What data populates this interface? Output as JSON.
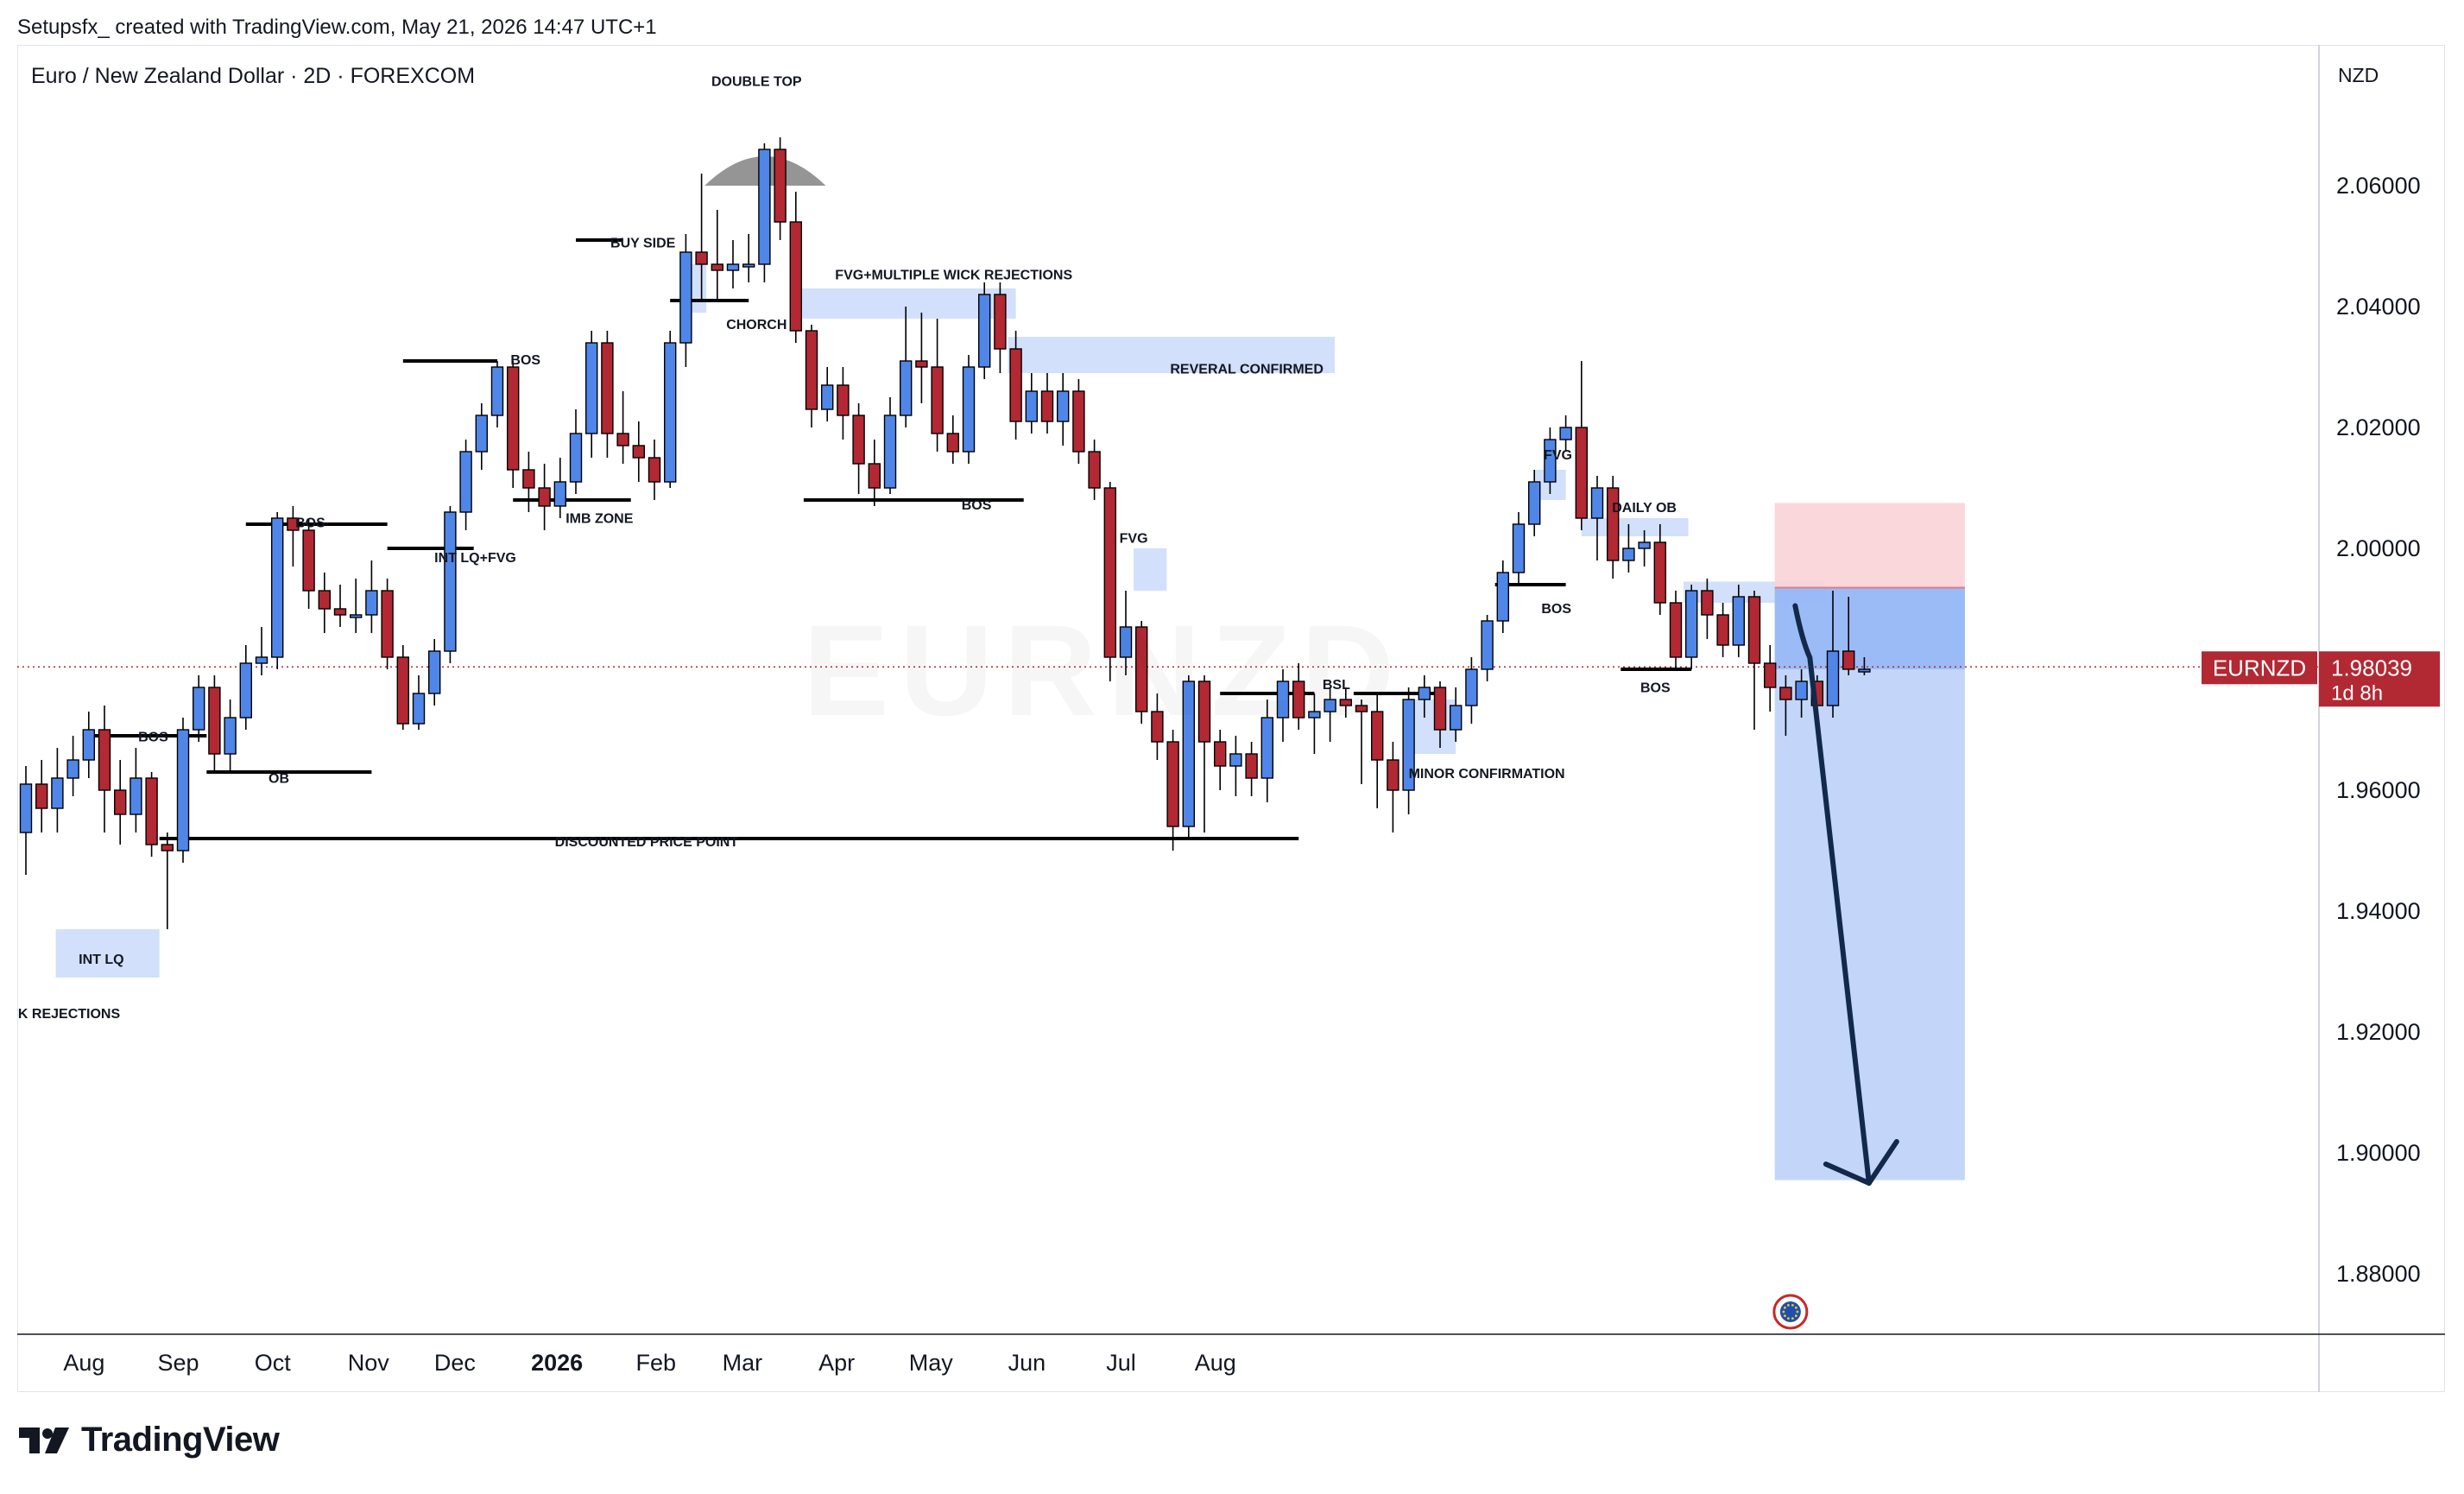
{
  "header": {
    "credit": "Setupsfx_ created with TradingView.com, May 21, 2026 14:47 UTC+1",
    "symbol_title": "Euro / New Zealand Dollar · 2D · FOREXCOM",
    "currency": "NZD"
  },
  "price_label": {
    "symbol": "EURNZD",
    "value": "1.98039",
    "countdown": "1d 8h"
  },
  "watermark": "EURNZD",
  "footer": {
    "brand": "TradingView"
  },
  "colors": {
    "bull": "#2962ff",
    "bull_fill": "#4f86e8",
    "bear": "#b22833",
    "zone_blue": "#c3d6fb",
    "stop_zone": "#f8d3d7",
    "target_zone": "#bcd2fa",
    "entry_zone": "#8eb2f6",
    "arrow": "#13294b",
    "label_bg": "#b22833"
  },
  "icons": {
    "logo": "tradingview-logo-icon",
    "marker": "economic-event-icon"
  },
  "chart_data": {
    "type": "candlestick",
    "title": "Euro / New Zealand Dollar · 2D · FOREXCOM",
    "ylabel": "NZD",
    "ylim": [
      1.869,
      2.089
    ],
    "y_ticks": [
      "2.06000",
      "2.04000",
      "2.02000",
      "2.00000",
      "1.98000",
      "1.96000",
      "1.94000",
      "1.92000",
      "1.90000",
      "1.88000"
    ],
    "x_ticks": [
      "Aug",
      "Sep",
      "Oct",
      "Nov",
      "Dec",
      "2026",
      "Feb",
      "Mar",
      "Apr",
      "May",
      "Jun",
      "Jul",
      "Aug"
    ],
    "grid": false,
    "last_price": 1.98039,
    "candles": [
      [
        1.953,
        1.961,
        1.946,
        1.964
      ],
      [
        1.961,
        1.957,
        1.953,
        1.965
      ],
      [
        1.957,
        1.962,
        1.953,
        1.967
      ],
      [
        1.962,
        1.965,
        1.959,
        1.969
      ],
      [
        1.965,
        1.97,
        1.962,
        1.973
      ],
      [
        1.97,
        1.96,
        1.953,
        1.974
      ],
      [
        1.96,
        1.956,
        1.951,
        1.965
      ],
      [
        1.956,
        1.962,
        1.953,
        1.967
      ],
      [
        1.962,
        1.951,
        1.949,
        1.963
      ],
      [
        1.951,
        1.95,
        1.937,
        1.953
      ],
      [
        1.95,
        1.97,
        1.948,
        1.972
      ],
      [
        1.97,
        1.977,
        1.968,
        1.979
      ],
      [
        1.977,
        1.966,
        1.963,
        1.979
      ],
      [
        1.966,
        1.972,
        1.963,
        1.975
      ],
      [
        1.972,
        1.981,
        1.97,
        1.984
      ],
      [
        1.981,
        1.982,
        1.979,
        1.987
      ],
      [
        1.982,
        2.005,
        1.98,
        2.006
      ],
      [
        2.005,
        2.003,
        1.997,
        2.007
      ],
      [
        2.003,
        1.993,
        1.99,
        2.005
      ],
      [
        1.993,
        1.99,
        1.986,
        1.996
      ],
      [
        1.99,
        1.989,
        1.987,
        1.994
      ],
      [
        1.989,
        1.989,
        1.986,
        1.995
      ],
      [
        1.989,
        1.993,
        1.986,
        1.998
      ],
      [
        1.993,
        1.982,
        1.98,
        1.995
      ],
      [
        1.982,
        1.971,
        1.97,
        1.984
      ],
      [
        1.971,
        1.976,
        1.97,
        1.979
      ],
      [
        1.976,
        1.983,
        1.974,
        1.985
      ],
      [
        1.983,
        2.006,
        1.981,
        2.007
      ],
      [
        2.006,
        2.016,
        2.003,
        2.018
      ],
      [
        2.016,
        2.022,
        2.013,
        2.024
      ],
      [
        2.022,
        2.03,
        2.02,
        2.031
      ],
      [
        2.03,
        2.013,
        2.01,
        2.031
      ],
      [
        2.013,
        2.01,
        2.006,
        2.016
      ],
      [
        2.01,
        2.007,
        2.003,
        2.014
      ],
      [
        2.007,
        2.011,
        2.005,
        2.015
      ],
      [
        2.011,
        2.019,
        2.009,
        2.023
      ],
      [
        2.019,
        2.034,
        2.015,
        2.036
      ],
      [
        2.034,
        2.019,
        2.015,
        2.036
      ],
      [
        2.019,
        2.017,
        2.014,
        2.026
      ],
      [
        2.017,
        2.015,
        2.011,
        2.021
      ],
      [
        2.015,
        2.011,
        2.008,
        2.018
      ],
      [
        2.011,
        2.034,
        2.01,
        2.036
      ],
      [
        2.034,
        2.049,
        2.03,
        2.052
      ],
      [
        2.049,
        2.047,
        2.041,
        2.062
      ],
      [
        2.047,
        2.046,
        2.041,
        2.056
      ],
      [
        2.046,
        2.047,
        2.043,
        2.051
      ],
      [
        2.047,
        2.047,
        2.044,
        2.052
      ],
      [
        2.047,
        2.066,
        2.044,
        2.067
      ],
      [
        2.066,
        2.054,
        2.051,
        2.068
      ],
      [
        2.054,
        2.036,
        2.034,
        2.059
      ],
      [
        2.036,
        2.023,
        2.02,
        2.037
      ],
      [
        2.023,
        2.027,
        2.021,
        2.03
      ],
      [
        2.027,
        2.022,
        2.018,
        2.03
      ],
      [
        2.022,
        2.014,
        2.009,
        2.024
      ],
      [
        2.014,
        2.01,
        2.007,
        2.018
      ],
      [
        2.01,
        2.022,
        2.009,
        2.025
      ],
      [
        2.022,
        2.031,
        2.02,
        2.04
      ],
      [
        2.031,
        2.03,
        2.024,
        2.039
      ],
      [
        2.03,
        2.019,
        2.016,
        2.038
      ],
      [
        2.019,
        2.016,
        2.014,
        2.022
      ],
      [
        2.016,
        2.03,
        2.014,
        2.032
      ],
      [
        2.03,
        2.042,
        2.028,
        2.044
      ],
      [
        2.042,
        2.033,
        2.029,
        2.044
      ],
      [
        2.033,
        2.021,
        2.018,
        2.036
      ],
      [
        2.021,
        2.026,
        2.019,
        2.029
      ],
      [
        2.026,
        2.021,
        2.019,
        2.029
      ],
      [
        2.021,
        2.026,
        2.017,
        2.029
      ],
      [
        2.026,
        2.016,
        2.014,
        2.028
      ],
      [
        2.016,
        2.01,
        2.008,
        2.018
      ],
      [
        2.01,
        1.982,
        1.978,
        2.011
      ],
      [
        1.982,
        1.987,
        1.979,
        1.993
      ],
      [
        1.987,
        1.973,
        1.971,
        1.988
      ],
      [
        1.973,
        1.968,
        1.965,
        1.976
      ],
      [
        1.968,
        1.954,
        1.95,
        1.97
      ],
      [
        1.954,
        1.978,
        1.952,
        1.979
      ],
      [
        1.978,
        1.968,
        1.953,
        1.979
      ],
      [
        1.968,
        1.964,
        1.96,
        1.97
      ],
      [
        1.964,
        1.966,
        1.959,
        1.969
      ],
      [
        1.966,
        1.962,
        1.959,
        1.968
      ],
      [
        1.962,
        1.972,
        1.958,
        1.975
      ],
      [
        1.972,
        1.978,
        1.968,
        1.98
      ],
      [
        1.978,
        1.972,
        1.97,
        1.981
      ],
      [
        1.972,
        1.973,
        1.966,
        1.976
      ],
      [
        1.973,
        1.975,
        1.968,
        1.977
      ],
      [
        1.975,
        1.974,
        1.972,
        1.977
      ],
      [
        1.974,
        1.973,
        1.961,
        1.975
      ],
      [
        1.973,
        1.965,
        1.957,
        1.976
      ],
      [
        1.965,
        1.96,
        1.953,
        1.968
      ],
      [
        1.96,
        1.975,
        1.956,
        1.977
      ],
      [
        1.975,
        1.977,
        1.972,
        1.979
      ],
      [
        1.977,
        1.97,
        1.967,
        1.978
      ],
      [
        1.97,
        1.974,
        1.968,
        1.977
      ],
      [
        1.974,
        1.98,
        1.971,
        1.982
      ],
      [
        1.98,
        1.988,
        1.978,
        1.989
      ],
      [
        1.988,
        1.996,
        1.986,
        1.998
      ],
      [
        1.996,
        2.004,
        1.994,
        2.006
      ],
      [
        2.004,
        2.011,
        2.002,
        2.013
      ],
      [
        2.011,
        2.018,
        2.009,
        2.02
      ],
      [
        2.018,
        2.02,
        2.016,
        2.022
      ],
      [
        2.02,
        2.005,
        2.003,
        2.031
      ],
      [
        2.005,
        2.01,
        1.998,
        2.012
      ],
      [
        2.01,
        1.998,
        1.995,
        2.012
      ],
      [
        1.998,
        2.0,
        1.996,
        2.004
      ],
      [
        2.0,
        2.001,
        1.997,
        2.003
      ],
      [
        2.001,
        1.991,
        1.989,
        2.004
      ],
      [
        1.991,
        1.982,
        1.98,
        1.993
      ],
      [
        1.982,
        1.993,
        1.98,
        1.994
      ],
      [
        1.993,
        1.989,
        1.985,
        1.995
      ],
      [
        1.989,
        1.984,
        1.982,
        1.991
      ],
      [
        1.984,
        1.992,
        1.982,
        1.994
      ],
      [
        1.992,
        1.981,
        1.97,
        1.993
      ],
      [
        1.981,
        1.977,
        1.973,
        1.984
      ],
      [
        1.977,
        1.975,
        1.969,
        1.979
      ],
      [
        1.975,
        1.978,
        1.972,
        1.98
      ],
      [
        1.978,
        1.974,
        1.97,
        1.979
      ],
      [
        1.974,
        1.983,
        1.972,
        1.993
      ],
      [
        1.983,
        1.98,
        1.979,
        1.992
      ],
      [
        1.98,
        1.98,
        1.979,
        1.982
      ]
    ]
  },
  "annotations": {
    "labels": [
      {
        "text": "DOUBLE TOP",
        "t": 46.5,
        "price": 2.0765,
        "anchor": "middle"
      },
      {
        "text": "BUY SIDE",
        "t": 37.2,
        "price": 2.0498,
        "anchor": "start"
      },
      {
        "text": "FVG+MULTIPLE WICK REJECTIONS",
        "t": 51.5,
        "price": 2.0445,
        "anchor": "start"
      },
      {
        "text": "CHORCH",
        "t": 46.5,
        "price": 2.0363,
        "anchor": "middle"
      },
      {
        "text": "REVERAL CONFIRMED",
        "t": 77.7,
        "price": 2.0289,
        "anchor": "middle"
      },
      {
        "text": "BOS",
        "t": 31.8,
        "price": 2.0304,
        "anchor": "middle"
      },
      {
        "text": "BOS",
        "t": 18.1,
        "price": 2.0035,
        "anchor": "middle"
      },
      {
        "text": "INT LQ+FVG",
        "t": 28.6,
        "price": 1.9977,
        "anchor": "middle"
      },
      {
        "text": "IMB ZONE",
        "t": 36.5,
        "price": 2.0042,
        "anchor": "middle"
      },
      {
        "text": "BOS",
        "t": 60.5,
        "price": 2.0064,
        "anchor": "middle"
      },
      {
        "text": "FVG",
        "t": 70.5,
        "price": 2.0009,
        "anchor": "middle"
      },
      {
        "text": "BOS",
        "t": 8.1,
        "price": 1.9681,
        "anchor": "middle"
      },
      {
        "text": "OB",
        "t": 16.1,
        "price": 1.9612,
        "anchor": "middle"
      },
      {
        "text": "DISCOUNTED PRICE POINT",
        "t": 39.5,
        "price": 1.9507,
        "anchor": "middle"
      },
      {
        "text": "INT LQ",
        "t": 4.8,
        "price": 1.9313,
        "anchor": "middle"
      },
      {
        "text": "K REJECTIONS",
        "t": -0.5,
        "price": 1.9223,
        "anchor": "start"
      },
      {
        "text": "BSL",
        "t": 83.4,
        "price": 1.9767,
        "anchor": "middle"
      },
      {
        "text": "MINOR CONFIRMATION",
        "t": 88.0,
        "price": 1.962,
        "anchor": "start"
      },
      {
        "text": "FVG",
        "t": 97.5,
        "price": 2.0147,
        "anchor": "middle"
      },
      {
        "text": "DAILY OB",
        "t": 103.0,
        "price": 2.006,
        "anchor": "middle"
      },
      {
        "text": "BOS",
        "t": 97.4,
        "price": 1.9893,
        "anchor": "middle"
      },
      {
        "text": "BOS",
        "t": 103.7,
        "price": 1.9762,
        "anchor": "middle"
      }
    ]
  },
  "trade": {
    "entry": 1.9935,
    "stop": 2.0075,
    "target": 1.8955,
    "entry_zone_low": 1.98
  }
}
